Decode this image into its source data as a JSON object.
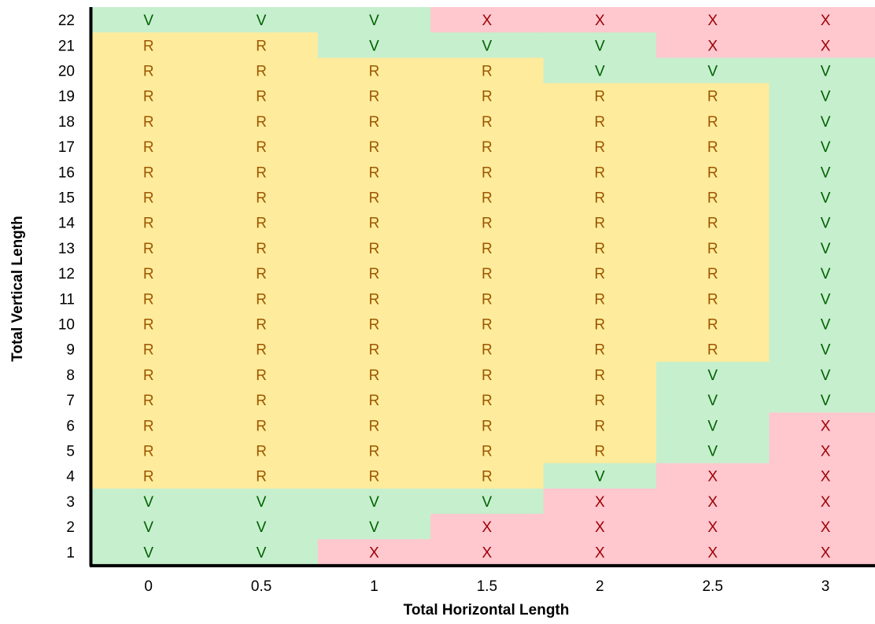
{
  "chart_data": {
    "type": "heatmap",
    "xlabel": "Total Horizontal Length",
    "ylabel": "Total Vertical Length",
    "x_categories": [
      "0",
      "0.5",
      "1",
      "1.5",
      "2",
      "2.5",
      "3"
    ],
    "y_categories": [
      "1",
      "2",
      "3",
      "4",
      "5",
      "6",
      "7",
      "8",
      "9",
      "10",
      "11",
      "12",
      "13",
      "14",
      "15",
      "16",
      "17",
      "18",
      "19",
      "20",
      "21",
      "22"
    ],
    "rows_top_to_bottom": [
      {
        "y": "22",
        "values": [
          "V",
          "V",
          "V",
          "X",
          "X",
          "X",
          "X"
        ]
      },
      {
        "y": "21",
        "values": [
          "R",
          "R",
          "V",
          "V",
          "V",
          "X",
          "X"
        ]
      },
      {
        "y": "20",
        "values": [
          "R",
          "R",
          "R",
          "R",
          "V",
          "V",
          "V"
        ]
      },
      {
        "y": "19",
        "values": [
          "R",
          "R",
          "R",
          "R",
          "R",
          "R",
          "V"
        ]
      },
      {
        "y": "18",
        "values": [
          "R",
          "R",
          "R",
          "R",
          "R",
          "R",
          "V"
        ]
      },
      {
        "y": "17",
        "values": [
          "R",
          "R",
          "R",
          "R",
          "R",
          "R",
          "V"
        ]
      },
      {
        "y": "16",
        "values": [
          "R",
          "R",
          "R",
          "R",
          "R",
          "R",
          "V"
        ]
      },
      {
        "y": "15",
        "values": [
          "R",
          "R",
          "R",
          "R",
          "R",
          "R",
          "V"
        ]
      },
      {
        "y": "14",
        "values": [
          "R",
          "R",
          "R",
          "R",
          "R",
          "R",
          "V"
        ]
      },
      {
        "y": "13",
        "values": [
          "R",
          "R",
          "R",
          "R",
          "R",
          "R",
          "V"
        ]
      },
      {
        "y": "12",
        "values": [
          "R",
          "R",
          "R",
          "R",
          "R",
          "R",
          "V"
        ]
      },
      {
        "y": "11",
        "values": [
          "R",
          "R",
          "R",
          "R",
          "R",
          "R",
          "V"
        ]
      },
      {
        "y": "10",
        "values": [
          "R",
          "R",
          "R",
          "R",
          "R",
          "R",
          "V"
        ]
      },
      {
        "y": "9",
        "values": [
          "R",
          "R",
          "R",
          "R",
          "R",
          "R",
          "V"
        ]
      },
      {
        "y": "8",
        "values": [
          "R",
          "R",
          "R",
          "R",
          "R",
          "V",
          "V"
        ]
      },
      {
        "y": "7",
        "values": [
          "R",
          "R",
          "R",
          "R",
          "R",
          "V",
          "V"
        ]
      },
      {
        "y": "6",
        "values": [
          "R",
          "R",
          "R",
          "R",
          "R",
          "V",
          "X"
        ]
      },
      {
        "y": "5",
        "values": [
          "R",
          "R",
          "R",
          "R",
          "R",
          "V",
          "X"
        ]
      },
      {
        "y": "4",
        "values": [
          "R",
          "R",
          "R",
          "R",
          "V",
          "X",
          "X"
        ]
      },
      {
        "y": "3",
        "values": [
          "V",
          "V",
          "V",
          "V",
          "X",
          "X",
          "X"
        ]
      },
      {
        "y": "2",
        "values": [
          "V",
          "V",
          "V",
          "X",
          "X",
          "X",
          "X"
        ]
      },
      {
        "y": "1",
        "values": [
          "V",
          "V",
          "X",
          "X",
          "X",
          "X",
          "X"
        ]
      }
    ],
    "colors": {
      "V": {
        "fill": "#c6efce",
        "text": "#006100"
      },
      "R": {
        "fill": "#ffeb9c",
        "text": "#9c5700"
      },
      "X": {
        "fill": "#ffc7ce",
        "text": "#9c0006"
      }
    },
    "axis_color": "#000000",
    "grid": false
  }
}
